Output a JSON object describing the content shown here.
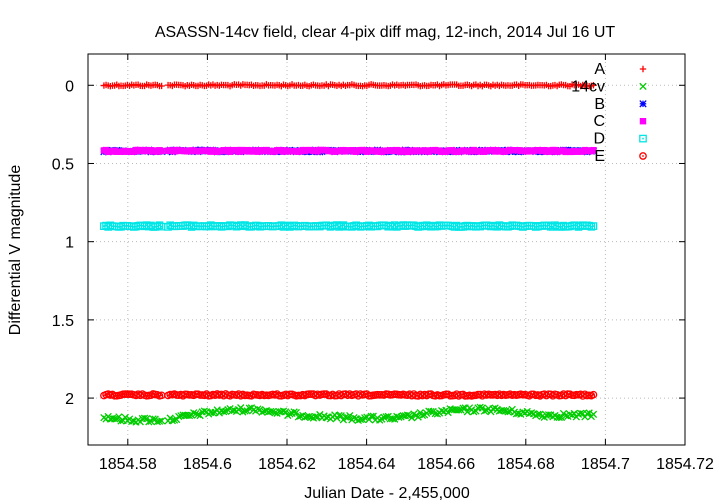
{
  "chart_data": {
    "type": "scatter",
    "title": "ASASSN-14cv field, clear 4-pix diff mag, 12-inch, 2014 Jul 16 UT",
    "xlabel": "Julian Date - 2,455,000",
    "ylabel": "Differential V magnitude",
    "xlim": [
      1854.57,
      1854.72
    ],
    "ylim": [
      2.3,
      -0.2
    ],
    "y_inverted": true,
    "x_ticks": [
      "1854.58",
      "1854.6",
      "1854.62",
      "1854.64",
      "1854.66",
      "1854.68",
      "1854.7",
      "1854.72"
    ],
    "y_ticks": [
      "0",
      "0.5",
      "1",
      "1.5",
      "2"
    ],
    "x_tick_values": [
      1854.58,
      1854.6,
      1854.62,
      1854.64,
      1854.66,
      1854.68,
      1854.7,
      1854.72
    ],
    "y_tick_values": [
      0,
      0.5,
      1,
      1.5,
      2
    ],
    "grid": true,
    "legend_position": "top-right",
    "time_coverage": {
      "x_start": 1854.574,
      "x_end": 1854.697,
      "gap_start": 1854.589,
      "gap_end": 1854.59
    },
    "series": [
      {
        "name": "A",
        "color": "#ff0000",
        "marker": "plus",
        "baseline": 0.0,
        "profile": [
          [
            1854.574,
            0.0
          ],
          [
            1854.697,
            0.0
          ]
        ]
      },
      {
        "name": "14cv",
        "color": "#00cc00",
        "marker": "cross",
        "baseline": 2.12,
        "profile": [
          [
            1854.574,
            2.12
          ],
          [
            1854.58,
            2.14
          ],
          [
            1854.59,
            2.14
          ],
          [
            1854.598,
            2.1
          ],
          [
            1854.605,
            2.08
          ],
          [
            1854.612,
            2.07
          ],
          [
            1854.62,
            2.1
          ],
          [
            1854.63,
            2.12
          ],
          [
            1854.64,
            2.13
          ],
          [
            1854.648,
            2.13
          ],
          [
            1854.655,
            2.1
          ],
          [
            1854.662,
            2.08
          ],
          [
            1854.67,
            2.07
          ],
          [
            1854.678,
            2.09
          ],
          [
            1854.685,
            2.11
          ],
          [
            1854.697,
            2.11
          ]
        ]
      },
      {
        "name": "B",
        "color": "#0000ff",
        "marker": "star",
        "baseline": 0.42,
        "profile": [
          [
            1854.574,
            0.42
          ],
          [
            1854.697,
            0.42
          ]
        ]
      },
      {
        "name": "C",
        "color": "#ff00ff",
        "marker": "square-filled",
        "baseline": 0.42,
        "profile": [
          [
            1854.574,
            0.42
          ],
          [
            1854.697,
            0.42
          ]
        ]
      },
      {
        "name": "D",
        "color": "#00e5e5",
        "marker": "square-open",
        "baseline": 0.9,
        "profile": [
          [
            1854.574,
            0.9
          ],
          [
            1854.697,
            0.9
          ]
        ]
      },
      {
        "name": "E",
        "color": "#ff0000",
        "marker": "circle-dot",
        "baseline": 1.98,
        "profile": [
          [
            1854.574,
            1.98
          ],
          [
            1854.697,
            1.98
          ]
        ]
      }
    ]
  }
}
